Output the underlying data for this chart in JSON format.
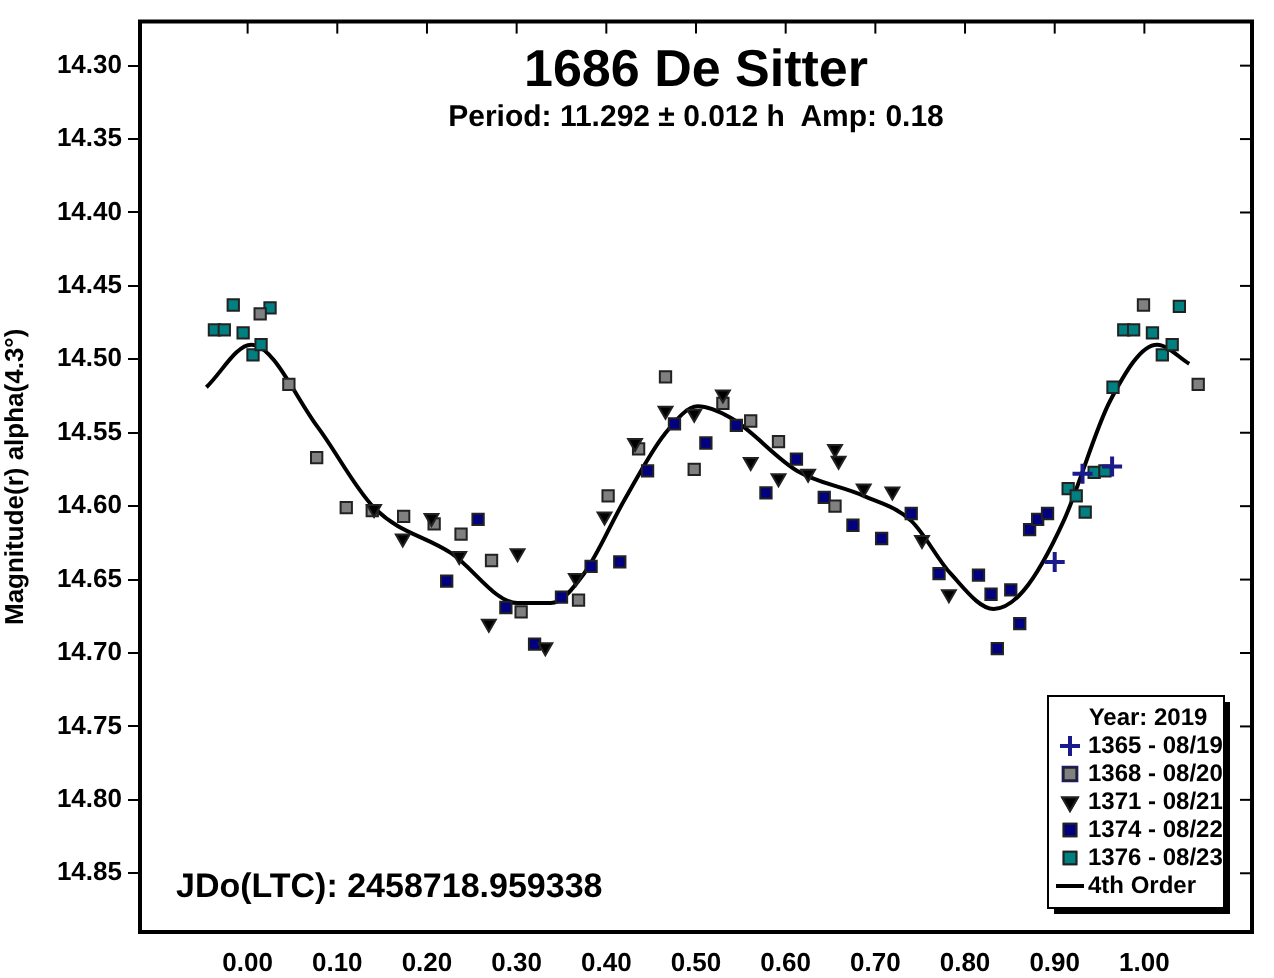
{
  "chart_data": {
    "type": "scatter",
    "title": "1686 De Sitter",
    "subtitle": "Period: 11.292 ± 0.012 h  Amp: 0.18",
    "ylabel": "Magnitude(r) alpha(4.3°)",
    "legend_title": "Year: 2019",
    "legend": "bottom right",
    "annotations": [
      "JDo(LTC): 2458718.959338"
    ],
    "xlim": [
      -0.12,
      1.12
    ],
    "ylim": [
      14.89,
      14.27
    ],
    "xticks": [
      {
        "value": 0,
        "label": "0.00"
      },
      {
        "value": 0.1,
        "label": "0.10"
      },
      {
        "value": 0.2,
        "label": "0.20"
      },
      {
        "value": 0.3,
        "label": "0.30"
      },
      {
        "value": 0.4,
        "label": "0.40"
      },
      {
        "value": 0.5,
        "label": "0.50"
      },
      {
        "value": 0.6,
        "label": "0.60"
      },
      {
        "value": 0.7,
        "label": "0.70"
      },
      {
        "value": 0.8,
        "label": "0.80"
      },
      {
        "value": 0.9,
        "label": "0.90"
      },
      {
        "value": 1,
        "label": "1.00"
      }
    ],
    "yticks": [
      {
        "value": 14.3,
        "label": "14.30"
      },
      14.35,
      {
        "value": 14.4,
        "label": "14.40"
      },
      14.45,
      {
        "value": 14.5,
        "label": "14.50"
      },
      14.55,
      {
        "value": 14.6,
        "label": "14.60"
      },
      14.65,
      {
        "value": 14.7,
        "label": "14.70"
      },
      14.75,
      {
        "value": 14.8,
        "label": "14.80"
      },
      14.85
    ],
    "series": [
      {
        "name": "1365 - 08/19",
        "color": "#1a1a8c",
        "marker": "cross",
        "x": [
          0.9,
          0.931,
          0.964
        ],
        "values": [
          14.638,
          14.578,
          14.573
        ]
      },
      {
        "name": "1368 - 08/20",
        "color": "#808080",
        "marker": "square",
        "x": [
          0.014,
          0.046,
          0.077,
          0.11,
          0.139,
          0.174,
          0.208,
          0.238,
          0.272,
          0.305,
          0.369,
          0.402,
          0.436,
          0.466,
          0.498,
          0.53,
          0.561,
          0.592,
          0.655,
          0.999,
          1.06
        ],
        "values": [
          14.469,
          14.517,
          14.567,
          14.601,
          14.603,
          14.607,
          14.612,
          14.619,
          14.637,
          14.672,
          14.664,
          14.593,
          14.561,
          14.512,
          14.575,
          14.53,
          14.542,
          14.556,
          14.6,
          14.463,
          14.517
        ]
      },
      {
        "name": "1371 - 08/21",
        "color": "#000000",
        "marker": "triangle",
        "x": [
          0.141,
          0.173,
          0.205,
          0.236,
          0.269,
          0.301,
          0.332,
          0.366,
          0.398,
          0.432,
          0.466,
          0.498,
          0.53,
          0.561,
          0.592,
          0.625,
          0.655,
          0.659,
          0.687,
          0.719,
          0.752,
          0.782
        ],
        "values": [
          14.602,
          14.622,
          14.608,
          14.634,
          14.68,
          14.632,
          14.696,
          14.649,
          14.607,
          14.557,
          14.535,
          14.537,
          14.524,
          14.57,
          14.581,
          14.578,
          14.561,
          14.569,
          14.588,
          14.59,
          14.623,
          14.66
        ]
      },
      {
        "name": "1374 - 08/22",
        "color": "#000080",
        "marker": "square",
        "x": [
          0.222,
          0.257,
          0.288,
          0.32,
          0.35,
          0.383,
          0.415,
          0.446,
          0.476,
          0.511,
          0.545,
          0.578,
          0.612,
          0.643,
          0.675,
          0.707,
          0.74,
          0.771,
          0.815,
          0.829,
          0.836,
          0.851,
          0.861,
          0.872,
          0.881,
          0.892
        ],
        "values": [
          14.651,
          14.609,
          14.669,
          14.694,
          14.662,
          14.641,
          14.638,
          14.576,
          14.544,
          14.557,
          14.545,
          14.591,
          14.568,
          14.594,
          14.613,
          14.622,
          14.605,
          14.646,
          14.647,
          14.66,
          14.697,
          14.657,
          14.68,
          14.616,
          14.609,
          14.605
        ]
      },
      {
        "name": "1376 - 08/23",
        "color": "#008080",
        "marker": "square",
        "x": [
          -0.037,
          -0.026,
          -0.016,
          -0.005,
          0.006,
          0.015,
          0.025,
          0.915,
          0.924,
          0.934,
          0.944,
          0.956,
          0.965,
          0.977,
          0.988,
          1.009,
          1.02,
          1.031,
          1.039
        ],
        "values": [
          14.48,
          14.48,
          14.463,
          14.482,
          14.497,
          14.49,
          14.465,
          14.588,
          14.593,
          14.604,
          14.577,
          14.576,
          14.519,
          14.48,
          14.48,
          14.482,
          14.497,
          14.49,
          14.464
        ]
      },
      {
        "name": "4th Order",
        "type": "line",
        "color": "#000000",
        "marker": "none",
        "x": [
          -0.046,
          0.004,
          0.078,
          0.141,
          0.227,
          0.301,
          0.338,
          0.375,
          0.42,
          0.465,
          0.502,
          0.539,
          0.613,
          0.687,
          0.74,
          0.784,
          0.832,
          0.866,
          0.91,
          0.962,
          1.014,
          1.05
        ],
        "values": [
          14.519,
          14.49,
          14.546,
          14.601,
          14.632,
          14.666,
          14.666,
          14.646,
          14.596,
          14.551,
          14.532,
          14.54,
          14.576,
          14.593,
          14.61,
          14.646,
          14.67,
          14.657,
          14.61,
          14.528,
          14.49,
          14.503
        ]
      }
    ]
  }
}
